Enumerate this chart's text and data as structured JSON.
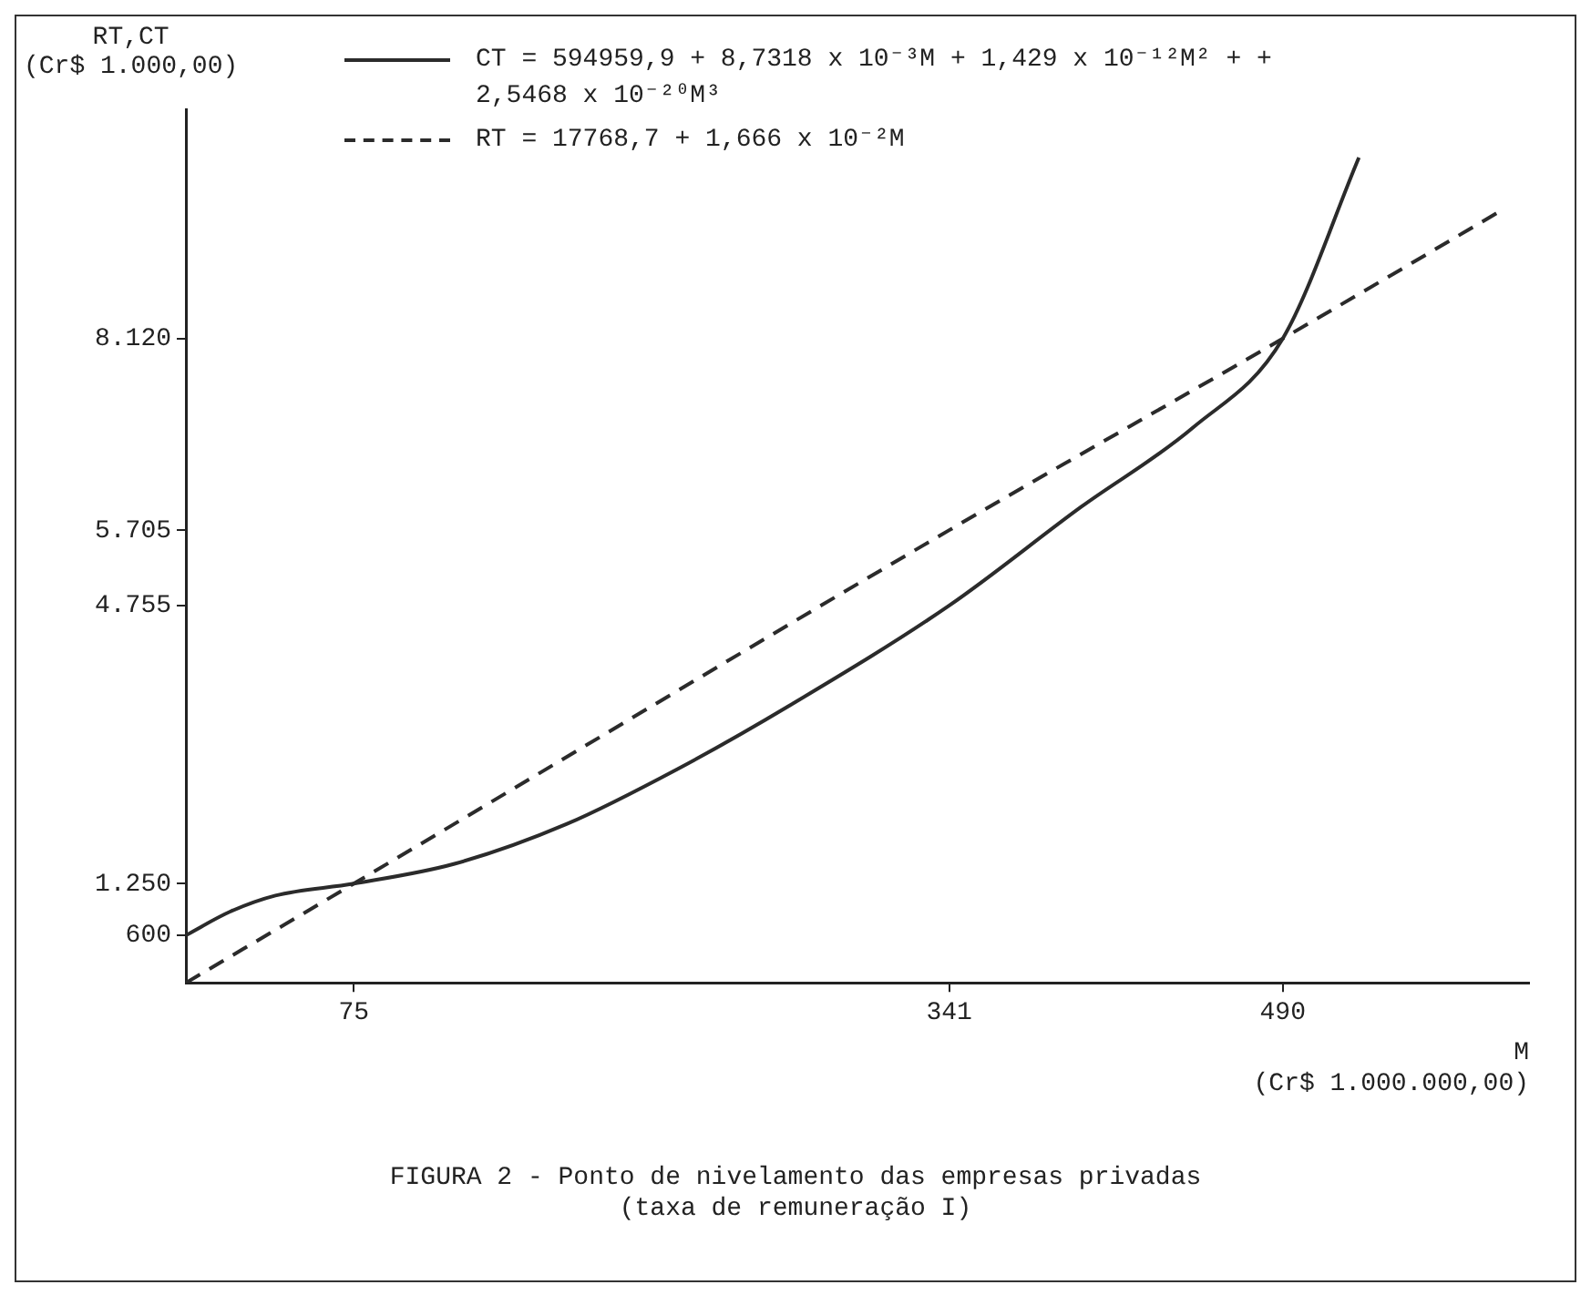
{
  "chart_data": {
    "type": "line",
    "title": "FIGURA 2 - Ponto de nivelamento das empresas privadas\n(taxa de remuneração I)",
    "xlabel": "M\n(Cr$ 1.000.000,00)",
    "ylabel": "RT,CT\n(Cr$ 1.000,00)",
    "xlim": [
      0,
      600
    ],
    "ylim": [
      0,
      11000
    ],
    "xticks": [
      75,
      341,
      490
    ],
    "yticks": [
      600,
      {
        "value": 1250,
        "label": "1.250"
      },
      {
        "value": 4755,
        "label": "4.755"
      },
      {
        "value": 5705,
        "label": "5.705"
      },
      {
        "value": 8120,
        "label": "8.120"
      }
    ],
    "grid": false,
    "legend": "top",
    "marker": "none",
    "series": [
      {
        "name": "CT = 594959,9 + 8,7318 x 10⁻³M + 1,429 x 10⁻¹²M² + + 2,5468 x 10⁻²⁰M³",
        "color": "#2b2b2b",
        "line_style": "solid",
        "x": [
          0,
          20,
          40,
          75,
          120,
          170,
          220,
          270,
          341,
          400,
          450,
          490,
          524
        ],
        "values": [
          600,
          900,
          1100,
          1250,
          1500,
          2000,
          2700,
          3500,
          4755,
          6000,
          7000,
          8120,
          10400
        ]
      },
      {
        "name": "RT = 17768,7 + 1,666 x 10⁻²M",
        "color": "#2b2b2b",
        "line_style": "dashed",
        "x": [
          0,
          75,
          341,
          490,
          588
        ],
        "values": [
          0,
          1250,
          5705,
          8120,
          9740
        ]
      }
    ]
  }
}
